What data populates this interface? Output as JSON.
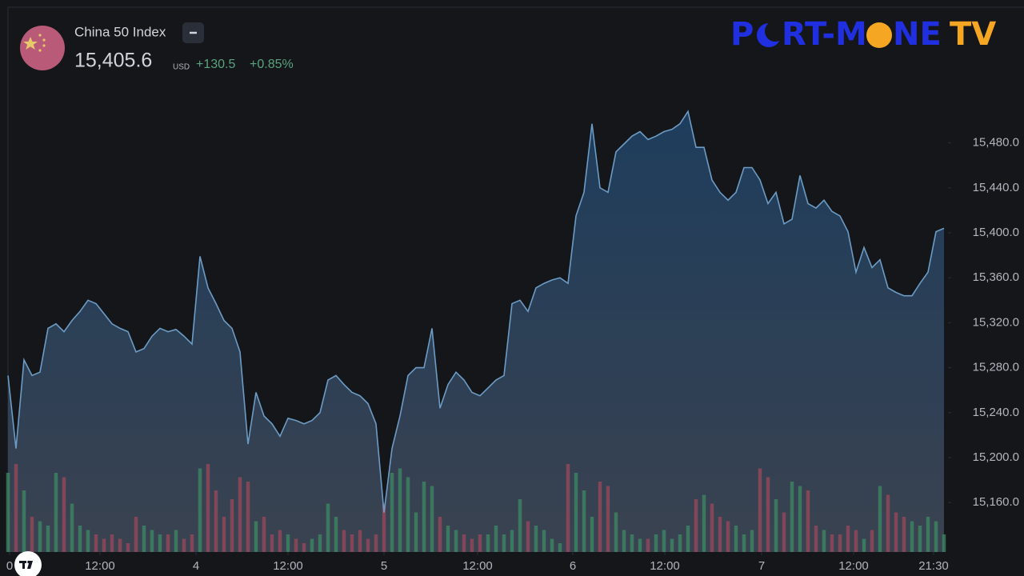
{
  "header": {
    "name": "China 50 Index",
    "price": "15,405.6",
    "currency": "USD",
    "change": "+130.5",
    "change_pct": "+0.85%"
  },
  "logo": {
    "p": "P",
    "mid": "RT-M",
    "ne": "NE",
    "tv": "TV"
  },
  "chart_data": {
    "type": "area",
    "line_color": "#6c9cc6",
    "up_color": "#3d8a64",
    "down_color": "#9a4a5c",
    "x": [
      0,
      1,
      2,
      3,
      4,
      5,
      6,
      7,
      8,
      9,
      10,
      11,
      12,
      13,
      14,
      15,
      16,
      17,
      18,
      19,
      20,
      21,
      22,
      23,
      24,
      25,
      26,
      27,
      28,
      29,
      30,
      31,
      32,
      33,
      34,
      35,
      36,
      37,
      38,
      39,
      40,
      41,
      42,
      43,
      44,
      45,
      46,
      47,
      48,
      49,
      50,
      51,
      52,
      53,
      54,
      55,
      56,
      57,
      58,
      59,
      60,
      61,
      62,
      63,
      64,
      65,
      66,
      67,
      68,
      69,
      70,
      71,
      72,
      73,
      74,
      75,
      76,
      77,
      78,
      79,
      80,
      81,
      82,
      83,
      84,
      85,
      86,
      87,
      88,
      89,
      90,
      91,
      92,
      93,
      94,
      95,
      96,
      97,
      98,
      99,
      100,
      101,
      102,
      103,
      104,
      105,
      106,
      107,
      108,
      109,
      110,
      111,
      112,
      113,
      114,
      115,
      116,
      117
    ],
    "values": [
      15273,
      15208,
      15287,
      15273,
      15276,
      15315,
      15319,
      15312,
      15322,
      15330,
      15340,
      15337,
      15328,
      15319,
      15315,
      15312,
      15294,
      15297,
      15308,
      15315,
      15312,
      15314,
      15308,
      15301,
      15379,
      15351,
      15337,
      15322,
      15315,
      15294,
      15212,
      15258,
      15237,
      15230,
      15219,
      15235,
      15233,
      15230,
      15233,
      15240,
      15269,
      15273,
      15265,
      15258,
      15255,
      15248,
      15230,
      15151,
      15208,
      15237,
      15273,
      15280,
      15280,
      15315,
      15244,
      15265,
      15276,
      15269,
      15258,
      15255,
      15262,
      15269,
      15273,
      15337,
      15340,
      15330,
      15351,
      15355,
      15358,
      15360,
      15355,
      15415,
      15436,
      15497,
      15440,
      15436,
      15472,
      15479,
      15486,
      15490,
      15483,
      15486,
      15490,
      15492,
      15497,
      15508,
      15476,
      15476,
      15447,
      15436,
      15429,
      15436,
      15458,
      15458,
      15447,
      15426,
      15436,
      15408,
      15412,
      15451,
      15426,
      15422,
      15429,
      15419,
      15415,
      15401,
      15365,
      15387,
      15369,
      15376,
      15351,
      15347,
      15344,
      15344,
      15355,
      15365,
      15401,
      15404
    ],
    "volume": [
      90,
      100,
      70,
      40,
      35,
      30,
      90,
      85,
      55,
      30,
      25,
      20,
      15,
      20,
      15,
      10,
      40,
      30,
      25,
      20,
      20,
      25,
      15,
      20,
      95,
      100,
      70,
      40,
      60,
      85,
      80,
      35,
      40,
      20,
      25,
      20,
      15,
      10,
      15,
      20,
      55,
      40,
      25,
      20,
      25,
      15,
      20,
      55,
      90,
      95,
      85,
      45,
      80,
      75,
      40,
      30,
      25,
      20,
      15,
      20,
      20,
      30,
      20,
      25,
      60,
      35,
      30,
      25,
      15,
      10,
      100,
      90,
      70,
      40,
      80,
      75,
      45,
      25,
      20,
      15,
      15,
      20,
      25,
      15,
      20,
      30,
      60,
      65,
      55,
      40,
      35,
      30,
      20,
      25,
      95,
      85,
      60,
      45,
      80,
      75,
      70,
      30,
      25,
      20,
      20,
      30,
      25,
      15,
      25,
      75,
      65,
      45,
      40,
      35,
      30,
      40,
      35,
      20
    ],
    "xlim": [
      0,
      117.5
    ],
    "ylim": [
      15116,
      15600
    ],
    "yticks": [
      {
        "value": 15160,
        "label": "15,160.0"
      },
      {
        "value": 15200,
        "label": "15,200.0"
      },
      {
        "value": 15240,
        "label": "15,240.0"
      },
      {
        "value": 15280,
        "label": "15,280.0"
      },
      {
        "value": 15320,
        "label": "15,320.0"
      },
      {
        "value": 15360,
        "label": "15,360.0"
      },
      {
        "value": 15400,
        "label": "15,400.0"
      },
      {
        "value": 15440,
        "label": "15,440.0"
      },
      {
        "value": 15480,
        "label": "15,480.0"
      }
    ],
    "xticks": [
      {
        "value": 0.2,
        "label": "0"
      },
      {
        "value": 11.5,
        "label": "12:00"
      },
      {
        "value": 23.5,
        "label": "4"
      },
      {
        "value": 35,
        "label": "12:00"
      },
      {
        "value": 47,
        "label": "5"
      },
      {
        "value": 58.7,
        "label": "12:00"
      },
      {
        "value": 70.6,
        "label": "6"
      },
      {
        "value": 82.1,
        "label": "12:00"
      },
      {
        "value": 94.2,
        "label": "7"
      },
      {
        "value": 105.7,
        "label": "12:00"
      },
      {
        "value": 115.7,
        "label": "21:30"
      }
    ]
  }
}
